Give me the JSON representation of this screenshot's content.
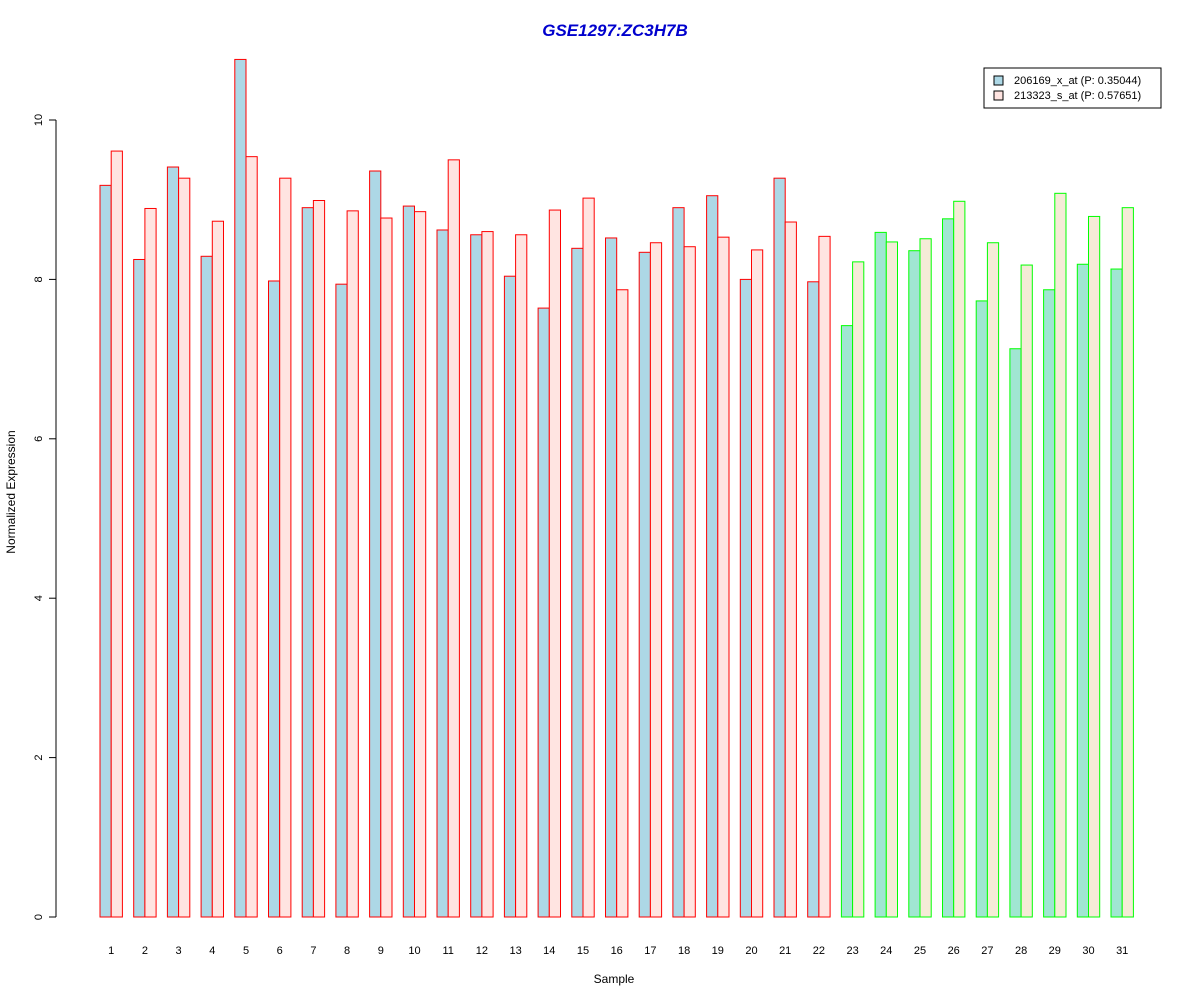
{
  "chart_data": {
    "type": "bar",
    "title": "GSE1297:ZC3H7B",
    "xlabel": "Sample",
    "ylabel": "Normalized Expression",
    "ylim": [
      0,
      10.8
    ],
    "yticks": [
      0,
      2,
      4,
      6,
      8,
      10
    ],
    "grid": false,
    "legend_position": "top-right",
    "categories": [
      "1",
      "2",
      "3",
      "4",
      "5",
      "6",
      "7",
      "8",
      "9",
      "10",
      "11",
      "12",
      "13",
      "14",
      "15",
      "16",
      "17",
      "18",
      "19",
      "20",
      "21",
      "22",
      "23",
      "24",
      "25",
      "26",
      "27",
      "28",
      "29",
      "30",
      "31"
    ],
    "groups": [
      {
        "samples": [
          "1",
          "2",
          "3",
          "4",
          "5",
          "6",
          "7",
          "8",
          "9",
          "10",
          "11",
          "12",
          "13",
          "14",
          "15",
          "16",
          "17",
          "18",
          "19",
          "20",
          "21",
          "22"
        ],
        "border_color": "#ff0000",
        "fill_colors": [
          "#add8e6",
          "#ffe4e1"
        ]
      },
      {
        "samples": [
          "23",
          "24",
          "25",
          "26",
          "27",
          "28",
          "29",
          "30",
          "31"
        ],
        "border_color": "#00ff00",
        "fill_colors": [
          "#a0e6d2",
          "#f5ebd7"
        ]
      }
    ],
    "series": [
      {
        "name": "206169_x_at (P: 0.35044)",
        "legend_color": "#add8e6",
        "values": [
          9.18,
          8.25,
          9.41,
          8.29,
          10.76,
          7.98,
          8.9,
          7.94,
          9.36,
          8.92,
          8.62,
          8.56,
          8.04,
          7.64,
          8.39,
          8.52,
          8.34,
          8.9,
          9.05,
          8.0,
          9.27,
          7.97,
          7.42,
          8.59,
          8.36,
          8.76,
          7.73,
          7.13,
          7.87,
          8.19,
          8.13
        ]
      },
      {
        "name": "213323_s_at (P: 0.57651)",
        "legend_color": "#ffe4e1",
        "values": [
          9.61,
          8.89,
          9.27,
          8.73,
          9.54,
          9.27,
          8.99,
          8.86,
          8.77,
          8.85,
          9.5,
          8.6,
          8.56,
          8.87,
          9.02,
          7.87,
          8.46,
          8.41,
          8.53,
          8.37,
          8.72,
          8.54,
          8.22,
          8.47,
          8.51,
          8.98,
          8.46,
          8.18,
          9.08,
          8.79,
          8.9
        ]
      }
    ]
  },
  "colors": {
    "title": "#0000cd",
    "axis": "#000000"
  }
}
